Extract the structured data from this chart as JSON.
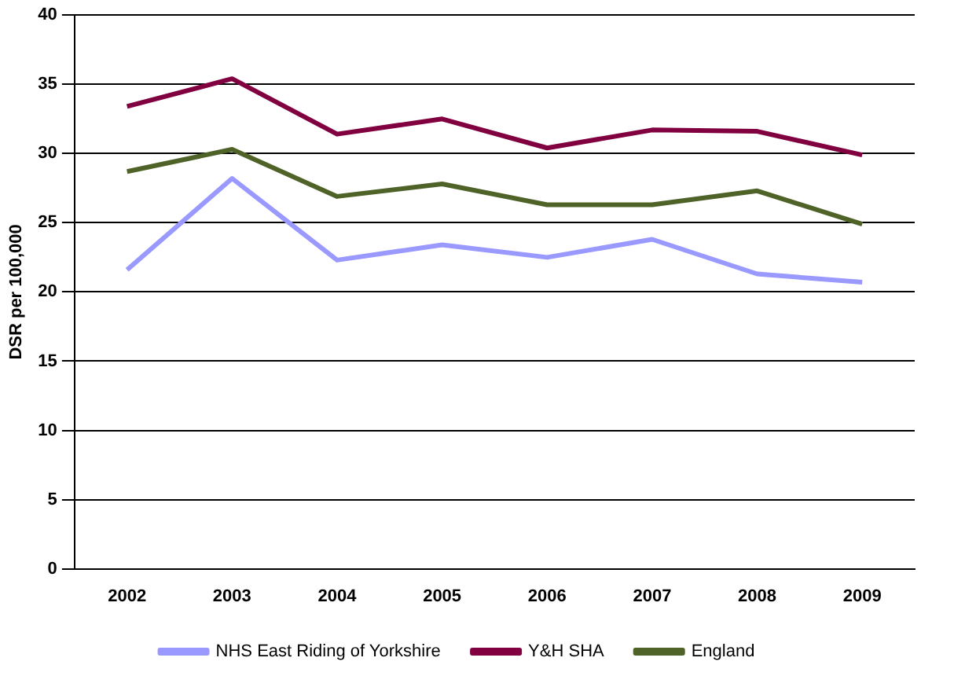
{
  "chart_data": {
    "type": "line",
    "ylabel": "DSR per 100,000",
    "categories": [
      "2002",
      "2003",
      "2004",
      "2005",
      "2006",
      "2007",
      "2008",
      "2009"
    ],
    "series": [
      {
        "name": "NHS East Riding of Yorkshire",
        "color": "#9999ff",
        "values": [
          21.6,
          28.2,
          22.3,
          23.4,
          22.5,
          23.8,
          21.3,
          20.7
        ]
      },
      {
        "name": "Y&H SHA",
        "color": "#800040",
        "values": [
          33.4,
          35.4,
          31.4,
          32.5,
          30.4,
          31.7,
          31.6,
          29.9
        ]
      },
      {
        "name": "England",
        "color": "#4f6228",
        "values": [
          28.7,
          30.3,
          26.9,
          27.8,
          26.3,
          26.3,
          27.3,
          24.9
        ]
      }
    ],
    "ylim": [
      0,
      40
    ],
    "yticks": [
      0,
      5,
      10,
      15,
      20,
      25,
      30,
      35,
      40
    ],
    "grid": "y",
    "legend": "bottom",
    "marker": "none"
  }
}
